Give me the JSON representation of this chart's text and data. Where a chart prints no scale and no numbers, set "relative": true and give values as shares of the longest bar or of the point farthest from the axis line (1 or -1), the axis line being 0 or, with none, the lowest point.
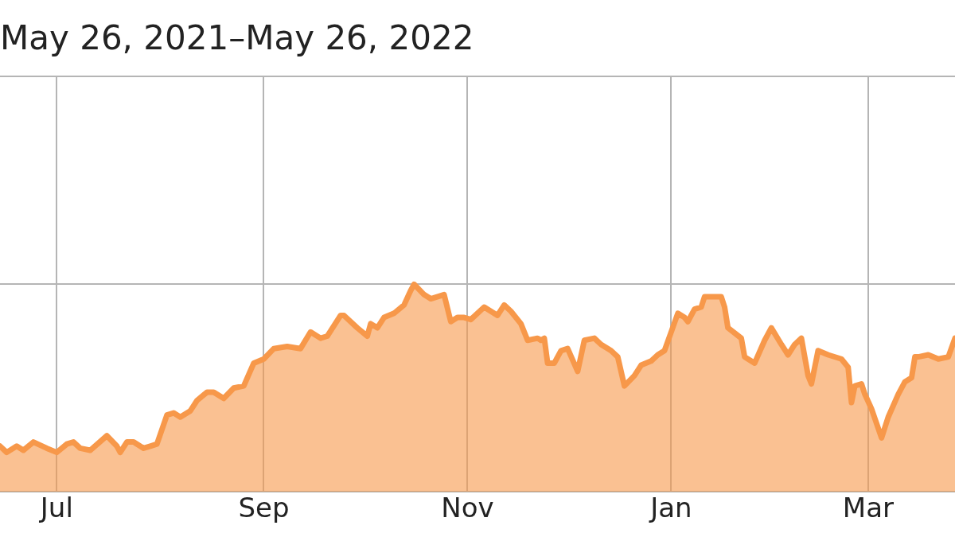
{
  "chart_data": {
    "type": "area",
    "title": "May 26, 2021–May 26, 2022",
    "relative": true,
    "grid": true,
    "xlim": [
      "2021-06-14",
      "2022-03-27"
    ],
    "xticks": [
      {
        "value": "2021-07-01",
        "label": "Jul"
      },
      {
        "value": "2021-09-01",
        "label": "Sep"
      },
      {
        "value": "2021-11-01",
        "label": "Nov"
      },
      {
        "value": "2022-01-01",
        "label": "Jan"
      },
      {
        "value": "2022-03-01",
        "label": "Mar"
      }
    ],
    "series": [
      {
        "color": "#f7984a",
        "x": [
          "2021-06-14",
          "2021-06-16",
          "2021-06-19",
          "2021-06-21",
          "2021-06-24",
          "2021-06-28",
          "2021-07-01",
          "2021-07-04",
          "2021-07-06",
          "2021-07-08",
          "2021-07-11",
          "2021-07-16",
          "2021-07-19",
          "2021-07-20",
          "2021-07-22",
          "2021-07-24",
          "2021-07-27",
          "2021-07-29",
          "2021-07-31",
          "2021-08-03",
          "2021-08-05",
          "2021-08-07",
          "2021-08-10",
          "2021-08-12",
          "2021-08-15",
          "2021-08-17",
          "2021-08-20",
          "2021-08-23",
          "2021-08-26",
          "2021-08-29",
          "2021-09-01",
          "2021-09-04",
          "2021-09-08",
          "2021-09-12",
          "2021-09-15",
          "2021-09-18",
          "2021-09-20",
          "2021-09-24",
          "2021-09-25",
          "2021-09-29",
          "2021-10-02",
          "2021-10-03",
          "2021-10-05",
          "2021-10-07",
          "2021-10-10",
          "2021-10-13",
          "2021-10-15",
          "2021-10-16",
          "2021-10-19",
          "2021-10-21",
          "2021-10-25",
          "2021-10-27",
          "2021-10-29",
          "2021-10-31",
          "2021-11-02",
          "2021-11-06",
          "2021-11-08",
          "2021-11-10",
          "2021-11-12",
          "2021-11-14",
          "2021-11-17",
          "2021-11-19",
          "2021-11-22",
          "2021-11-23",
          "2021-11-24",
          "2021-11-25",
          "2021-11-27",
          "2021-11-29",
          "2021-12-01",
          "2021-12-04",
          "2021-12-06",
          "2021-12-09",
          "2021-12-11",
          "2021-12-14",
          "2021-12-16",
          "2021-12-18",
          "2021-12-21",
          "2021-12-23",
          "2021-12-26",
          "2021-12-28",
          "2021-12-30",
          "2022-01-01",
          "2022-01-03",
          "2022-01-05",
          "2022-01-06",
          "2022-01-08",
          "2022-01-10",
          "2022-01-11",
          "2022-01-16",
          "2022-01-17",
          "2022-01-18",
          "2022-01-22",
          "2022-01-23",
          "2022-01-24",
          "2022-01-26",
          "2022-01-29",
          "2022-01-31",
          "2022-02-03",
          "2022-02-05",
          "2022-02-07",
          "2022-02-09",
          "2022-02-11",
          "2022-02-12",
          "2022-02-14",
          "2022-02-17",
          "2022-02-21",
          "2022-02-22",
          "2022-02-23",
          "2022-02-24",
          "2022-02-25",
          "2022-02-27",
          "2022-02-28",
          "2022-03-02",
          "2022-03-05",
          "2022-03-07",
          "2022-03-10",
          "2022-03-12",
          "2022-03-14",
          "2022-03-15",
          "2022-03-16",
          "2022-03-19",
          "2022-03-22",
          "2022-03-25",
          "2022-03-27"
        ],
        "values": [
          0.22,
          0.19,
          0.22,
          0.2,
          0.24,
          0.21,
          0.19,
          0.23,
          0.24,
          0.21,
          0.2,
          0.27,
          0.22,
          0.19,
          0.24,
          0.24,
          0.21,
          0.22,
          0.23,
          0.37,
          0.38,
          0.36,
          0.39,
          0.44,
          0.48,
          0.48,
          0.45,
          0.5,
          0.51,
          0.62,
          0.64,
          0.69,
          0.7,
          0.69,
          0.77,
          0.74,
          0.75,
          0.85,
          0.85,
          0.79,
          0.75,
          0.81,
          0.79,
          0.84,
          0.86,
          0.9,
          0.97,
          1,
          0.95,
          0.93,
          0.95,
          0.82,
          0.84,
          0.84,
          0.83,
          0.89,
          0.87,
          0.85,
          0.9,
          0.87,
          0.81,
          0.73,
          0.74,
          0.73,
          0.74,
          0.62,
          0.62,
          0.68,
          0.69,
          0.58,
          0.73,
          0.74,
          0.71,
          0.68,
          0.65,
          0.51,
          0.56,
          0.61,
          0.63,
          0.66,
          0.68,
          0.77,
          0.86,
          0.84,
          0.82,
          0.88,
          0.89,
          0.94,
          0.94,
          0.89,
          0.79,
          0.74,
          0.65,
          0.64,
          0.62,
          0.73,
          0.79,
          0.71,
          0.66,
          0.71,
          0.74,
          0.56,
          0.52,
          0.68,
          0.66,
          0.64,
          0.62,
          0.6,
          0.43,
          0.51,
          0.52,
          0.47,
          0.4,
          0.26,
          0.36,
          0.47,
          0.53,
          0.55,
          0.65,
          0.65,
          0.66,
          0.64,
          0.65,
          0.74
        ]
      }
    ]
  }
}
